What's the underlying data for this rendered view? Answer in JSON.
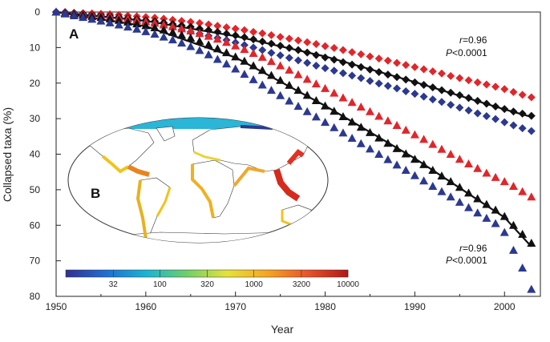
{
  "chart_data": {
    "type": "scatter",
    "xlabel": "Year",
    "ylabel": "Collapsed taxa (%)",
    "xlim": [
      1950,
      2004
    ],
    "ylim": [
      0,
      80
    ],
    "y_inverted": true,
    "x_ticks": [
      "1950",
      "1960",
      "1970",
      "1980",
      "1990",
      "2000"
    ],
    "y_ticks": [
      "0",
      "10",
      "20",
      "30",
      "40",
      "50",
      "60",
      "70",
      "80"
    ],
    "panel_labels": {
      "a": "A",
      "b": "B"
    },
    "colors": {
      "red": "#e0262b",
      "black": "#111111",
      "blue": "#2b3990"
    },
    "annotations": [
      {
        "r_label": "r",
        "r_value": "=0.96",
        "p_label": "P",
        "p_value": "<0.0001",
        "position": "upper-right"
      },
      {
        "r_label": "r",
        "r_value": "=0.96",
        "p_label": "P",
        "p_value": "<0.0001",
        "position": "lower-right"
      }
    ],
    "series": [
      {
        "marker": "diamond",
        "color": "red",
        "x": [
          1950,
          1951,
          1952,
          1953,
          1954,
          1955,
          1956,
          1957,
          1958,
          1959,
          1960,
          1961,
          1962,
          1963,
          1964,
          1965,
          1966,
          1967,
          1968,
          1969,
          1970,
          1971,
          1972,
          1973,
          1974,
          1975,
          1976,
          1977,
          1978,
          1979,
          1980,
          1981,
          1982,
          1983,
          1984,
          1985,
          1986,
          1987,
          1988,
          1989,
          1990,
          1991,
          1992,
          1993,
          1994,
          1995,
          1996,
          1997,
          1998,
          1999,
          2000,
          2001,
          2002,
          2003
        ],
        "y": [
          0,
          0,
          0.2,
          0.3,
          0.4,
          0.5,
          0.6,
          0.8,
          1.0,
          1.2,
          1.4,
          1.6,
          1.9,
          2.2,
          2.5,
          2.8,
          3.1,
          3.5,
          3.9,
          4.3,
          4.7,
          5.1,
          5.6,
          6.0,
          6.5,
          7.0,
          7.5,
          8.0,
          8.5,
          9.0,
          9.6,
          10.1,
          10.7,
          11.3,
          11.9,
          12.5,
          13.1,
          13.7,
          14.3,
          14.9,
          15.5,
          16.1,
          16.7,
          17.3,
          18.0,
          18.6,
          19.2,
          19.8,
          20.4,
          21.0,
          21.7,
          22.5,
          23.3,
          24.0
        ]
      },
      {
        "marker": "diamond",
        "color": "black",
        "x": [
          1950,
          1951,
          1952,
          1953,
          1954,
          1955,
          1956,
          1957,
          1958,
          1959,
          1960,
          1961,
          1962,
          1963,
          1964,
          1965,
          1966,
          1967,
          1968,
          1969,
          1970,
          1971,
          1972,
          1973,
          1974,
          1975,
          1976,
          1977,
          1978,
          1979,
          1980,
          1981,
          1982,
          1983,
          1984,
          1985,
          1986,
          1987,
          1988,
          1989,
          1990,
          1991,
          1992,
          1993,
          1994,
          1995,
          1996,
          1997,
          1998,
          1999,
          2000,
          2001,
          2002,
          2003
        ],
        "y": [
          0,
          0.1,
          0.3,
          0.5,
          0.7,
          0.9,
          1.1,
          1.4,
          1.7,
          2.0,
          2.3,
          2.6,
          3.0,
          3.4,
          3.8,
          4.2,
          4.7,
          5.1,
          5.6,
          6.1,
          6.6,
          7.1,
          7.7,
          8.3,
          8.9,
          9.5,
          10.1,
          10.7,
          11.4,
          12.1,
          12.8,
          13.4,
          14.1,
          14.8,
          15.5,
          16.2,
          16.9,
          17.6,
          18.3,
          19.0,
          19.8,
          20.5,
          21.2,
          22.0,
          22.7,
          23.4,
          24.2,
          25.0,
          25.8,
          26.6,
          27.3,
          28.0,
          28.6,
          29.2
        ]
      },
      {
        "marker": "diamond",
        "color": "blue",
        "x": [
          1950,
          1951,
          1952,
          1953,
          1954,
          1955,
          1956,
          1957,
          1958,
          1959,
          1960,
          1961,
          1962,
          1963,
          1964,
          1965,
          1966,
          1967,
          1968,
          1969,
          1970,
          1971,
          1972,
          1973,
          1974,
          1975,
          1976,
          1977,
          1978,
          1979,
          1980,
          1981,
          1982,
          1983,
          1984,
          1985,
          1986,
          1987,
          1988,
          1989,
          1990,
          1991,
          1992,
          1993,
          1994,
          1995,
          1996,
          1997,
          1998,
          1999,
          2000,
          2001,
          2002,
          2003
        ],
        "y": [
          0,
          0.2,
          0.4,
          0.7,
          0.9,
          1.2,
          1.5,
          1.9,
          2.3,
          2.7,
          3.1,
          3.5,
          4.0,
          4.5,
          5.0,
          5.6,
          6.1,
          6.7,
          7.3,
          7.9,
          8.6,
          9.3,
          10.0,
          10.7,
          11.5,
          12.2,
          12.9,
          13.6,
          14.3,
          15.1,
          15.8,
          16.5,
          17.2,
          17.9,
          18.6,
          19.4,
          20.1,
          20.8,
          21.5,
          22.3,
          23.0,
          23.8,
          24.6,
          25.3,
          26.1,
          26.9,
          27.7,
          28.5,
          29.3,
          30.1,
          31.0,
          31.9,
          32.7,
          33.5
        ]
      },
      {
        "marker": "triangle",
        "color": "red",
        "x": [
          1950,
          1951,
          1952,
          1953,
          1954,
          1955,
          1956,
          1957,
          1958,
          1959,
          1960,
          1961,
          1962,
          1963,
          1964,
          1965,
          1966,
          1967,
          1968,
          1969,
          1970,
          1971,
          1972,
          1973,
          1974,
          1975,
          1976,
          1977,
          1978,
          1979,
          1980,
          1981,
          1982,
          1983,
          1984,
          1985,
          1986,
          1987,
          1988,
          1989,
          1990,
          1991,
          1992,
          1993,
          1994,
          1995,
          1996,
          1997,
          1998,
          1999,
          2000,
          2001,
          2002,
          2003
        ],
        "y": [
          0,
          0.2,
          0.4,
          0.6,
          0.8,
          1.0,
          1.3,
          1.6,
          1.9,
          2.3,
          2.7,
          3.1,
          3.6,
          4.1,
          4.7,
          5.3,
          6.0,
          6.8,
          7.6,
          8.5,
          9.5,
          10.5,
          11.6,
          12.7,
          13.9,
          15.1,
          16.3,
          17.6,
          18.9,
          20.2,
          21.5,
          22.8,
          24.1,
          25.4,
          26.7,
          28.0,
          29.3,
          30.6,
          31.9,
          33.2,
          34.5,
          35.8,
          37.2,
          38.6,
          40.0,
          41.4,
          42.7,
          44.0,
          45.3,
          46.5,
          47.7,
          49.0,
          50.5,
          52.0
        ]
      },
      {
        "marker": "triangle",
        "color": "black",
        "x": [
          1950,
          1951,
          1952,
          1953,
          1954,
          1955,
          1956,
          1957,
          1958,
          1959,
          1960,
          1961,
          1962,
          1963,
          1964,
          1965,
          1966,
          1967,
          1968,
          1969,
          1970,
          1971,
          1972,
          1973,
          1974,
          1975,
          1976,
          1977,
          1978,
          1979,
          1980,
          1981,
          1982,
          1983,
          1984,
          1985,
          1986,
          1987,
          1988,
          1989,
          1990,
          1991,
          1992,
          1993,
          1994,
          1995,
          1996,
          1997,
          1998,
          1999,
          2000,
          2001,
          2002,
          2003
        ],
        "y": [
          0,
          0.3,
          0.6,
          0.9,
          1.2,
          1.5,
          1.9,
          2.3,
          2.8,
          3.3,
          3.8,
          4.4,
          5.0,
          5.7,
          6.5,
          7.3,
          8.2,
          9.2,
          10.3,
          11.4,
          12.6,
          13.8,
          15.1,
          16.4,
          17.8,
          19.2,
          20.6,
          22.0,
          23.4,
          24.9,
          26.4,
          27.9,
          29.4,
          30.9,
          32.4,
          33.9,
          35.4,
          36.9,
          38.4,
          39.9,
          41.4,
          42.9,
          44.5,
          46.1,
          47.7,
          49.3,
          50.9,
          52.5,
          54.1,
          55.7,
          57.5,
          60.0,
          62.5,
          65.0
        ]
      },
      {
        "marker": "triangle",
        "color": "blue",
        "x": [
          1950,
          1951,
          1952,
          1953,
          1954,
          1955,
          1956,
          1957,
          1958,
          1959,
          1960,
          1961,
          1962,
          1963,
          1964,
          1965,
          1966,
          1967,
          1968,
          1969,
          1970,
          1971,
          1972,
          1973,
          1974,
          1975,
          1976,
          1977,
          1978,
          1979,
          1980,
          1981,
          1982,
          1983,
          1984,
          1985,
          1986,
          1987,
          1988,
          1989,
          1990,
          1991,
          1992,
          1993,
          1994,
          1995,
          1996,
          1997,
          1998,
          1999,
          2000,
          2001,
          2002,
          2003
        ],
        "y": [
          0,
          0.5,
          1.0,
          1.5,
          2.0,
          2.5,
          3.0,
          3.6,
          4.2,
          4.8,
          5.5,
          6.2,
          7.0,
          7.8,
          8.7,
          9.7,
          10.8,
          12.0,
          13.3,
          14.6,
          16.0,
          17.5,
          19.0,
          20.5,
          22.0,
          23.5,
          25.0,
          26.5,
          28.0,
          29.5,
          31.0,
          32.5,
          34.0,
          35.5,
          37.0,
          38.5,
          40.0,
          41.5,
          43.0,
          44.5,
          46.0,
          47.5,
          49.0,
          50.5,
          52.0,
          53.5,
          55.0,
          56.5,
          58.0,
          59.5,
          62.0,
          67.0,
          72.0,
          78.0
        ]
      }
    ],
    "fit_lines": [
      {
        "color": "black",
        "x": [
          1950,
          1960,
          1970,
          1980,
          1990,
          2000,
          2003
        ],
        "y": [
          0,
          2.5,
          6.8,
          12.5,
          19.7,
          27.4,
          29.5
        ]
      },
      {
        "color": "black",
        "x": [
          1950,
          1960,
          1970,
          1980,
          1990,
          2000,
          2003
        ],
        "y": [
          0,
          4.0,
          12.8,
          26.4,
          41.2,
          57.8,
          66.0
        ]
      }
    ],
    "inset_map": {
      "colorbar_ticks": [
        "32",
        "100",
        "320",
        "1000",
        "3200",
        "10000"
      ],
      "colorbar_colors": [
        "#303090",
        "#1f6fd0",
        "#19b4d2",
        "#6fcf6a",
        "#e6e23a",
        "#f5a623",
        "#e8532a",
        "#b01818"
      ]
    }
  }
}
